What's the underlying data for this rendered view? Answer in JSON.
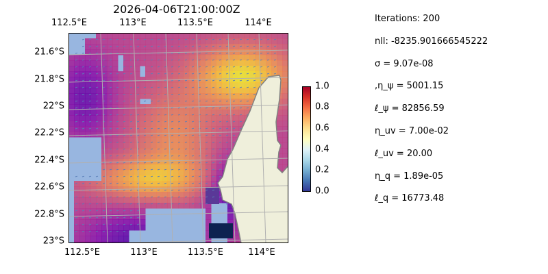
{
  "title": "2026-04-06T21:00:00Z",
  "map": {
    "lon_ticks_top": [
      "112.5°E",
      "113°E",
      "113.5°E",
      "114°E"
    ],
    "lon_ticks_bottom": [
      "112.5°E",
      "113°E",
      "113.5°E",
      "114°E"
    ],
    "lat_ticks": [
      "21.6°S",
      "21.8°S",
      "22°S",
      "22.2°S",
      "22.4°S",
      "22.6°S",
      "22.8°S",
      "23°S"
    ],
    "colors": {
      "ocean": "#98b6e0",
      "land": "#efefdb",
      "coast": "#808080",
      "grid": "#b0b0b0"
    }
  },
  "colorbar": {
    "ticks": [
      "0.0",
      "0.2",
      "0.4",
      "0.6",
      "0.8",
      "1.0"
    ],
    "range": [
      0,
      1
    ],
    "colormap": "RdYlBu_r"
  },
  "info": [
    "Iterations: 200",
    "nll: -8235.901666545222",
    "σ = 9.07e-08",
    ",η_ψ = 5001.15",
    "ℓ_ψ = 82856.59",
    "η_uv = 7.00e-02",
    "ℓ_uv = 20.00",
    "η_q = 1.89e-05",
    "ℓ_q = 16773.48"
  ]
}
